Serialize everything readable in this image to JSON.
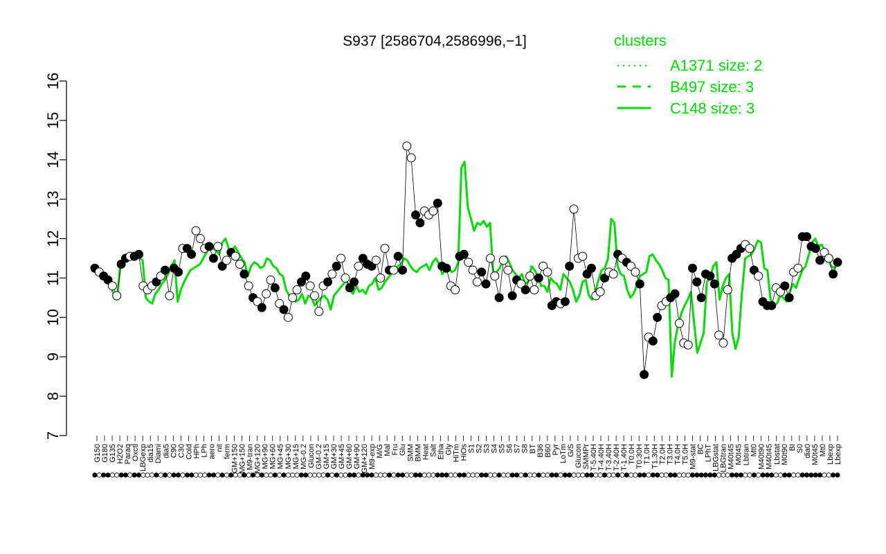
{
  "chart_data": {
    "type": "line",
    "title": "S937 [2586704,2586996,−1]",
    "xlabel": "",
    "ylabel": "",
    "ylim": [
      7,
      16
    ],
    "yticks": [
      7,
      8,
      9,
      10,
      11,
      12,
      13,
      14,
      15,
      16
    ],
    "grid": false,
    "legend_placement": "top-right",
    "legend": {
      "title": "clusters",
      "entries": [
        {
          "label": "A1371 size: 2",
          "style": "dotted"
        },
        {
          "label": "B497 size: 3",
          "style": "dashed"
        },
        {
          "label": "C148 size: 3",
          "style": "solid"
        }
      ]
    },
    "colors": {
      "line": "#00e000",
      "axis": "#000000",
      "point_fill_dark": "#000000",
      "point_fill_light": "#ffffff"
    },
    "x_tick_labels": [
      "G150",
      "G180",
      "G135",
      "H2O2",
      "Paraq",
      "Oxctl",
      "LBGexp",
      "dia15",
      "Diami",
      "dia5",
      "C90",
      "C30",
      "Cold",
      "HPh",
      "LPh",
      "aero",
      "nit",
      "ferm",
      "GM+150",
      "MG+150",
      "M9-tran",
      "MG+120",
      "MG+90",
      "MG+60",
      "MG+45",
      "MG+30",
      "MG+15",
      "MG-0.2",
      "Glucon",
      "GM-0.2",
      "GM+15",
      "GM+30",
      "GM+45",
      "GM+60",
      "GM+90",
      "GM+120",
      "M9-exp",
      "M/G",
      "Mal",
      "Fru",
      "Glu",
      "SMM",
      "BMM",
      "Heat",
      "Salt",
      "Etha",
      "Gly",
      "HiTm",
      "HiOs",
      "S1",
      "S2",
      "S3",
      "S4",
      "S5",
      "S6",
      "S7",
      "S8",
      "BT",
      "B36",
      "B60",
      "Pyr",
      "LoTm",
      "G/S",
      "Glucon",
      "SMMPr",
      "T-5.40H",
      "T-4.40H",
      "T-3.40H",
      "T-2.40H",
      "T-1.40H",
      "T0.0H",
      "T0.30H",
      "T1.0H",
      "T1.30H",
      "T2.0H",
      "T3.0H",
      "T4.0H",
      "T5.0H",
      "M9-stat",
      "BC",
      "LPhT",
      "LBGstat",
      "LBGtran",
      "M40t45",
      "M0t45",
      "Lbtran",
      "Mt0",
      "M40t90",
      "M40t45",
      "Lbstat",
      "M0t90",
      "BI",
      "S0",
      "dia0",
      "M0t45",
      "Mt0",
      "Lbexp",
      "Lbexp"
    ],
    "line_series": [
      11.25,
      11.15,
      11.1,
      11.0,
      10.95,
      10.8,
      10.55,
      10.45,
      11.35,
      11.45,
      11.5,
      11.5,
      11.55,
      11.55,
      11.5,
      11.45,
      10.5,
      10.4,
      10.35,
      10.6,
      10.7,
      10.85,
      10.95,
      11.1,
      11.3,
      11.45,
      10.4,
      10.7,
      10.9,
      11.05,
      11.2,
      11.25,
      11.3,
      11.35,
      11.5,
      11.65,
      11.8,
      11.75,
      11.7,
      11.6,
      11.9,
      12.0,
      11.75,
      11.7,
      11.8,
      11.65,
      11.5,
      11.4,
      11.05,
      11.3,
      11.4,
      11.35,
      11.25,
      11.3,
      11.5,
      11.45,
      11.3,
      11.25,
      11.1,
      11.05,
      10.7,
      10.55,
      10.45,
      10.4,
      10.45,
      10.6,
      10.35,
      10.55,
      10.5,
      10.3,
      10.4,
      10.5,
      10.55,
      10.45,
      10.2,
      10.55,
      10.65,
      10.75,
      10.85,
      10.95,
      10.7,
      10.6,
      10.8,
      10.65,
      10.7,
      10.6,
      10.8,
      10.85,
      11.0,
      10.7,
      10.75,
      10.9,
      11.0,
      11.1,
      11.2,
      11.3,
      11.35,
      11.5,
      11.45,
      11.3,
      11.2,
      11.15,
      11.25,
      11.3,
      11.35,
      11.2,
      11.4,
      11.5,
      11.35,
      11.1,
      11.2,
      11.25,
      11.15,
      11.2,
      11.4,
      13.8,
      13.95,
      12.8,
      12.5,
      12.2,
      12.4,
      12.35,
      12.45,
      12.3,
      12.4,
      11.1,
      11.15,
      11.25,
      11.45,
      11.55,
      11.4,
      11.2,
      11.1,
      11.0,
      11.1,
      10.85,
      10.9,
      11.3,
      11.2,
      11.05,
      10.8,
      10.8,
      10.65,
      11.0,
      10.9,
      10.85,
      10.7,
      11.1,
      11.0,
      10.9,
      10.7,
      10.4,
      10.55,
      10.9,
      10.95,
      10.55,
      10.45,
      10.65,
      10.95,
      11.2,
      11.25,
      11.5,
      12.5,
      12.4,
      11.3,
      11.1,
      11.05,
      10.7,
      10.5,
      10.6,
      10.8,
      11.05,
      11.1,
      11.15,
      11.55,
      11.6,
      11.45,
      11.35,
      11.2,
      11.0,
      10.95,
      8.5,
      9.4,
      9.8,
      10.1,
      10.3,
      10.45,
      10.65,
      9.85,
      9.1,
      9.35,
      9.6,
      10.9,
      11.0,
      11.3,
      11.4,
      10.45,
      10.8,
      11.0,
      11.1,
      9.6,
      9.2,
      9.5,
      10.6,
      11.5,
      11.55,
      11.6,
      11.75,
      11.95,
      11.9,
      11.25,
      11.2,
      10.45,
      10.3,
      10.35,
      10.55,
      10.5,
      10.4,
      10.65,
      10.85,
      10.75,
      11.0,
      11.2,
      11.3,
      11.6,
      11.9,
      12.0,
      11.8,
      11.85,
      11.7,
      11.5,
      11.3,
      11.25,
      11.4
    ],
    "points": [
      {
        "x": 0,
        "y": 11.25,
        "fill": "dark"
      },
      {
        "x": 1,
        "y": 11.15,
        "fill": "light"
      },
      {
        "x": 2,
        "y": 11.05,
        "fill": "dark"
      },
      {
        "x": 3,
        "y": 10.95,
        "fill": "dark"
      },
      {
        "x": 4,
        "y": 10.8,
        "fill": "light"
      },
      {
        "x": 5,
        "y": 10.55,
        "fill": "light"
      },
      {
        "x": 6,
        "y": 11.35,
        "fill": "dark"
      },
      {
        "x": 7,
        "y": 11.5,
        "fill": "dark"
      },
      {
        "x": 8,
        "y": 11.55,
        "fill": "light"
      },
      {
        "x": 9,
        "y": 11.55,
        "fill": "dark"
      },
      {
        "x": 10,
        "y": 11.6,
        "fill": "dark"
      },
      {
        "x": 11,
        "y": 10.8,
        "fill": "light"
      },
      {
        "x": 12,
        "y": 10.7,
        "fill": "light"
      },
      {
        "x": 13,
        "y": 10.8,
        "fill": "light"
      },
      {
        "x": 14,
        "y": 10.9,
        "fill": "dark"
      },
      {
        "x": 15,
        "y": 11.05,
        "fill": "light"
      },
      {
        "x": 16,
        "y": 11.2,
        "fill": "dark"
      },
      {
        "x": 17,
        "y": 10.55,
        "fill": "light"
      },
      {
        "x": 18,
        "y": 11.25,
        "fill": "dark"
      },
      {
        "x": 19,
        "y": 11.15,
        "fill": "dark"
      },
      {
        "x": 20,
        "y": 11.75,
        "fill": "light"
      },
      {
        "x": 21,
        "y": 11.75,
        "fill": "dark"
      },
      {
        "x": 22,
        "y": 11.6,
        "fill": "dark"
      },
      {
        "x": 23,
        "y": 12.2,
        "fill": "light"
      },
      {
        "x": 24,
        "y": 12.0,
        "fill": "light"
      },
      {
        "x": 25,
        "y": 11.75,
        "fill": "light"
      },
      {
        "x": 26,
        "y": 11.8,
        "fill": "dark"
      },
      {
        "x": 27,
        "y": 11.5,
        "fill": "dark"
      },
      {
        "x": 28,
        "y": 11.8,
        "fill": "light"
      },
      {
        "x": 29,
        "y": 11.3,
        "fill": "dark"
      },
      {
        "x": 30,
        "y": 11.45,
        "fill": "light"
      },
      {
        "x": 31,
        "y": 11.65,
        "fill": "dark"
      },
      {
        "x": 32,
        "y": 11.55,
        "fill": "light"
      },
      {
        "x": 33,
        "y": 11.35,
        "fill": "light"
      },
      {
        "x": 34,
        "y": 11.1,
        "fill": "dark"
      },
      {
        "x": 35,
        "y": 10.8,
        "fill": "light"
      },
      {
        "x": 36,
        "y": 10.5,
        "fill": "dark"
      },
      {
        "x": 37,
        "y": 10.4,
        "fill": "light"
      },
      {
        "x": 38,
        "y": 10.25,
        "fill": "dark"
      },
      {
        "x": 39,
        "y": 10.6,
        "fill": "light"
      },
      {
        "x": 40,
        "y": 10.95,
        "fill": "light"
      },
      {
        "x": 41,
        "y": 10.75,
        "fill": "dark"
      },
      {
        "x": 42,
        "y": 10.35,
        "fill": "light"
      },
      {
        "x": 43,
        "y": 10.2,
        "fill": "dark"
      },
      {
        "x": 44,
        "y": 10.0,
        "fill": "light"
      },
      {
        "x": 45,
        "y": 10.5,
        "fill": "light"
      },
      {
        "x": 46,
        "y": 10.7,
        "fill": "light"
      },
      {
        "x": 47,
        "y": 10.9,
        "fill": "dark"
      },
      {
        "x": 48,
        "y": 11.05,
        "fill": "dark"
      },
      {
        "x": 49,
        "y": 10.8,
        "fill": "light"
      },
      {
        "x": 50,
        "y": 10.55,
        "fill": "light"
      },
      {
        "x": 51,
        "y": 10.15,
        "fill": "light"
      },
      {
        "x": 52,
        "y": 10.8,
        "fill": "light"
      },
      {
        "x": 53,
        "y": 10.9,
        "fill": "dark"
      },
      {
        "x": 54,
        "y": 11.1,
        "fill": "light"
      },
      {
        "x": 55,
        "y": 11.3,
        "fill": "dark"
      },
      {
        "x": 56,
        "y": 11.5,
        "fill": "light"
      },
      {
        "x": 57,
        "y": 11.0,
        "fill": "light"
      },
      {
        "x": 58,
        "y": 10.75,
        "fill": "dark"
      },
      {
        "x": 59,
        "y": 10.9,
        "fill": "dark"
      },
      {
        "x": 60,
        "y": 11.3,
        "fill": "light"
      },
      {
        "x": 61,
        "y": 11.5,
        "fill": "dark"
      },
      {
        "x": 62,
        "y": 11.35,
        "fill": "dark"
      },
      {
        "x": 63,
        "y": 11.3,
        "fill": "dark"
      },
      {
        "x": 64,
        "y": 11.45,
        "fill": "light"
      },
      {
        "x": 65,
        "y": 11.0,
        "fill": "light"
      },
      {
        "x": 66,
        "y": 11.75,
        "fill": "light"
      },
      {
        "x": 67,
        "y": 11.2,
        "fill": "dark"
      },
      {
        "x": 68,
        "y": 11.2,
        "fill": "light"
      },
      {
        "x": 69,
        "y": 11.55,
        "fill": "dark"
      },
      {
        "x": 70,
        "y": 11.2,
        "fill": "dark"
      },
      {
        "x": 71,
        "y": 14.35,
        "fill": "light"
      },
      {
        "x": 72,
        "y": 14.05,
        "fill": "light"
      },
      {
        "x": 73,
        "y": 12.6,
        "fill": "dark"
      },
      {
        "x": 74,
        "y": 12.4,
        "fill": "dark"
      },
      {
        "x": 75,
        "y": 12.7,
        "fill": "light"
      },
      {
        "x": 76,
        "y": 12.6,
        "fill": "light"
      },
      {
        "x": 77,
        "y": 12.7,
        "fill": "light"
      },
      {
        "x": 78,
        "y": 12.9,
        "fill": "dark"
      },
      {
        "x": 79,
        "y": 11.3,
        "fill": "dark"
      },
      {
        "x": 80,
        "y": 11.25,
        "fill": "dark"
      },
      {
        "x": 81,
        "y": 10.8,
        "fill": "light"
      },
      {
        "x": 82,
        "y": 10.7,
        "fill": "light"
      },
      {
        "x": 83,
        "y": 11.55,
        "fill": "dark"
      },
      {
        "x": 84,
        "y": 11.6,
        "fill": "dark"
      },
      {
        "x": 85,
        "y": 11.4,
        "fill": "light"
      },
      {
        "x": 86,
        "y": 11.2,
        "fill": "light"
      },
      {
        "x": 87,
        "y": 10.9,
        "fill": "light"
      },
      {
        "x": 88,
        "y": 11.15,
        "fill": "dark"
      },
      {
        "x": 89,
        "y": 10.85,
        "fill": "dark"
      },
      {
        "x": 90,
        "y": 11.5,
        "fill": "light"
      },
      {
        "x": 91,
        "y": 11.05,
        "fill": "light"
      },
      {
        "x": 92,
        "y": 10.5,
        "fill": "dark"
      },
      {
        "x": 93,
        "y": 11.45,
        "fill": "light"
      },
      {
        "x": 94,
        "y": 11.2,
        "fill": "light"
      },
      {
        "x": 95,
        "y": 10.55,
        "fill": "dark"
      },
      {
        "x": 96,
        "y": 10.95,
        "fill": "dark"
      },
      {
        "x": 97,
        "y": 10.85,
        "fill": "light"
      },
      {
        "x": 98,
        "y": 10.7,
        "fill": "dark"
      },
      {
        "x": 99,
        "y": 11.05,
        "fill": "light"
      },
      {
        "x": 100,
        "y": 10.7,
        "fill": "light"
      },
      {
        "x": 101,
        "y": 11.0,
        "fill": "dark"
      },
      {
        "x": 102,
        "y": 11.3,
        "fill": "light"
      },
      {
        "x": 103,
        "y": 11.15,
        "fill": "light"
      },
      {
        "x": 104,
        "y": 10.3,
        "fill": "dark"
      },
      {
        "x": 105,
        "y": 10.4,
        "fill": "dark"
      },
      {
        "x": 106,
        "y": 10.35,
        "fill": "light"
      },
      {
        "x": 107,
        "y": 10.4,
        "fill": "dark"
      },
      {
        "x": 108,
        "y": 11.3,
        "fill": "dark"
      },
      {
        "x": 109,
        "y": 12.75,
        "fill": "light"
      },
      {
        "x": 110,
        "y": 11.5,
        "fill": "light"
      },
      {
        "x": 111,
        "y": 11.55,
        "fill": "light"
      },
      {
        "x": 112,
        "y": 11.1,
        "fill": "dark"
      },
      {
        "x": 113,
        "y": 11.25,
        "fill": "dark"
      },
      {
        "x": 114,
        "y": 10.55,
        "fill": "light"
      },
      {
        "x": 115,
        "y": 10.65,
        "fill": "light"
      },
      {
        "x": 116,
        "y": 11.0,
        "fill": "dark"
      },
      {
        "x": 117,
        "y": 11.15,
        "fill": "light"
      },
      {
        "x": 118,
        "y": 11.1,
        "fill": "light"
      },
      {
        "x": 119,
        "y": 11.6,
        "fill": "dark"
      },
      {
        "x": 120,
        "y": 11.5,
        "fill": "light"
      },
      {
        "x": 121,
        "y": 11.4,
        "fill": "dark"
      },
      {
        "x": 122,
        "y": 11.3,
        "fill": "light"
      },
      {
        "x": 123,
        "y": 11.15,
        "fill": "light"
      },
      {
        "x": 124,
        "y": 10.85,
        "fill": "dark"
      },
      {
        "x": 125,
        "y": 8.55,
        "fill": "dark"
      },
      {
        "x": 126,
        "y": 9.5,
        "fill": "light"
      },
      {
        "x": 127,
        "y": 9.4,
        "fill": "dark"
      },
      {
        "x": 128,
        "y": 10.0,
        "fill": "dark"
      },
      {
        "x": 129,
        "y": 10.3,
        "fill": "light"
      },
      {
        "x": 130,
        "y": 10.4,
        "fill": "light"
      },
      {
        "x": 131,
        "y": 10.5,
        "fill": "dark"
      },
      {
        "x": 132,
        "y": 10.6,
        "fill": "dark"
      },
      {
        "x": 133,
        "y": 9.85,
        "fill": "light"
      },
      {
        "x": 134,
        "y": 9.35,
        "fill": "light"
      },
      {
        "x": 135,
        "y": 9.3,
        "fill": "light"
      },
      {
        "x": 136,
        "y": 11.25,
        "fill": "dark"
      },
      {
        "x": 137,
        "y": 10.9,
        "fill": "dark"
      },
      {
        "x": 138,
        "y": 10.5,
        "fill": "dark"
      },
      {
        "x": 139,
        "y": 11.1,
        "fill": "dark"
      },
      {
        "x": 140,
        "y": 11.05,
        "fill": "dark"
      },
      {
        "x": 141,
        "y": 10.85,
        "fill": "dark"
      },
      {
        "x": 142,
        "y": 9.55,
        "fill": "light"
      },
      {
        "x": 143,
        "y": 9.35,
        "fill": "light"
      },
      {
        "x": 144,
        "y": 10.7,
        "fill": "light"
      },
      {
        "x": 145,
        "y": 11.5,
        "fill": "dark"
      },
      {
        "x": 146,
        "y": 11.6,
        "fill": "dark"
      },
      {
        "x": 147,
        "y": 11.75,
        "fill": "dark"
      },
      {
        "x": 148,
        "y": 11.85,
        "fill": "light"
      },
      {
        "x": 149,
        "y": 11.75,
        "fill": "light"
      },
      {
        "x": 150,
        "y": 11.2,
        "fill": "dark"
      },
      {
        "x": 151,
        "y": 11.05,
        "fill": "light"
      },
      {
        "x": 152,
        "y": 10.4,
        "fill": "dark"
      },
      {
        "x": 153,
        "y": 10.3,
        "fill": "dark"
      },
      {
        "x": 154,
        "y": 10.3,
        "fill": "dark"
      },
      {
        "x": 155,
        "y": 10.75,
        "fill": "light"
      },
      {
        "x": 156,
        "y": 10.65,
        "fill": "light"
      },
      {
        "x": 157,
        "y": 10.8,
        "fill": "dark"
      },
      {
        "x": 158,
        "y": 10.5,
        "fill": "dark"
      },
      {
        "x": 159,
        "y": 11.15,
        "fill": "light"
      },
      {
        "x": 160,
        "y": 11.25,
        "fill": "light"
      },
      {
        "x": 161,
        "y": 12.05,
        "fill": "dark"
      },
      {
        "x": 162,
        "y": 12.05,
        "fill": "dark"
      },
      {
        "x": 163,
        "y": 11.8,
        "fill": "dark"
      },
      {
        "x": 164,
        "y": 11.75,
        "fill": "dark"
      },
      {
        "x": 165,
        "y": 11.45,
        "fill": "dark"
      },
      {
        "x": 166,
        "y": 11.65,
        "fill": "light"
      },
      {
        "x": 167,
        "y": 11.5,
        "fill": "light"
      },
      {
        "x": 168,
        "y": 11.1,
        "fill": "dark"
      },
      {
        "x": 169,
        "y": 11.4,
        "fill": "dark"
      }
    ]
  }
}
